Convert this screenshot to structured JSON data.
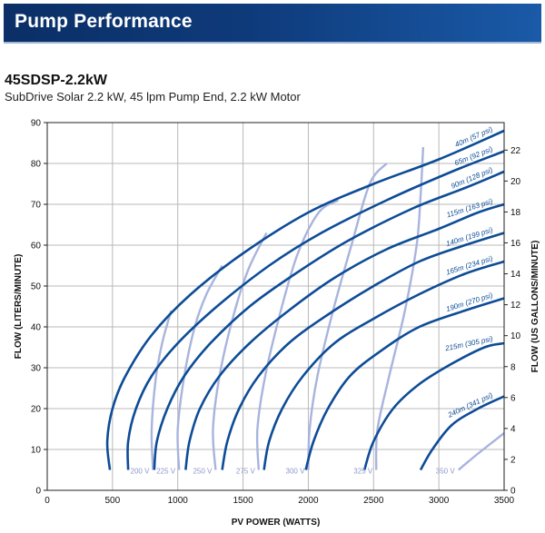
{
  "header": {
    "title": "Pump Performance"
  },
  "model": {
    "name": "45SDSP-2.2kW",
    "description": "SubDrive Solar 2.2 kW, 45 lpm Pump End, 2.2 kW Motor"
  },
  "colors": {
    "banner": "#0e3a7a",
    "head_curve": "#0d4c96",
    "voltage_curve": "#a8b4de",
    "grid": "#b8b8b8"
  },
  "chart_data": {
    "type": "line",
    "xlabel": "PV POWER (WATTS)",
    "ylabel": "FLOW (LITERS/MINUTE)",
    "y2label": "FLOW (US GALLONS/MINUTE)",
    "xlim": [
      0,
      3500
    ],
    "ylim": [
      0,
      90
    ],
    "y2lim": [
      0,
      23.78
    ],
    "x_ticks": [
      0,
      500,
      1000,
      1500,
      2000,
      2500,
      3000,
      3500
    ],
    "y_ticks": [
      0,
      10,
      20,
      30,
      40,
      50,
      60,
      70,
      80,
      90
    ],
    "y2_ticks": [
      0,
      2,
      4,
      6,
      8,
      10,
      12,
      14,
      16,
      18,
      20,
      22
    ],
    "grid": true,
    "head_series": [
      {
        "name": "40m (57 psi)",
        "points": [
          [
            480,
            5
          ],
          [
            460,
            12
          ],
          [
            500,
            20
          ],
          [
            600,
            28
          ],
          [
            800,
            38
          ],
          [
            1100,
            48
          ],
          [
            1500,
            58
          ],
          [
            2000,
            68
          ],
          [
            2500,
            75
          ],
          [
            3000,
            81
          ],
          [
            3500,
            88
          ]
        ]
      },
      {
        "name": "65m (92 psi)",
        "points": [
          [
            620,
            5
          ],
          [
            620,
            12
          ],
          [
            680,
            20
          ],
          [
            800,
            28
          ],
          [
            1000,
            36
          ],
          [
            1300,
            45
          ],
          [
            1700,
            55
          ],
          [
            2100,
            63
          ],
          [
            2600,
            71
          ],
          [
            3100,
            78
          ],
          [
            3500,
            83
          ]
        ]
      },
      {
        "name": "90m (128 psi)",
        "points": [
          [
            820,
            5
          ],
          [
            840,
            12
          ],
          [
            920,
            20
          ],
          [
            1050,
            28
          ],
          [
            1250,
            36
          ],
          [
            1550,
            45
          ],
          [
            1900,
            53
          ],
          [
            2300,
            61
          ],
          [
            2800,
            69
          ],
          [
            3200,
            74
          ],
          [
            3500,
            78
          ]
        ]
      },
      {
        "name": "115m (163 psi)",
        "points": [
          [
            1060,
            5
          ],
          [
            1090,
            12
          ],
          [
            1170,
            20
          ],
          [
            1320,
            28
          ],
          [
            1550,
            36
          ],
          [
            1850,
            44
          ],
          [
            2200,
            52
          ],
          [
            2600,
            59
          ],
          [
            3000,
            64
          ],
          [
            3300,
            68
          ],
          [
            3500,
            70
          ]
        ]
      },
      {
        "name": "140m (199 psi)",
        "points": [
          [
            1340,
            5
          ],
          [
            1380,
            12
          ],
          [
            1470,
            20
          ],
          [
            1620,
            28
          ],
          [
            1850,
            36
          ],
          [
            2150,
            43
          ],
          [
            2500,
            50
          ],
          [
            2850,
            56
          ],
          [
            3200,
            60
          ],
          [
            3500,
            63
          ]
        ]
      },
      {
        "name": "165m (234 psi)",
        "points": [
          [
            1660,
            5
          ],
          [
            1700,
            12
          ],
          [
            1800,
            20
          ],
          [
            1960,
            28
          ],
          [
            2200,
            36
          ],
          [
            2500,
            42
          ],
          [
            2850,
            48
          ],
          [
            3200,
            53
          ],
          [
            3500,
            56
          ]
        ]
      },
      {
        "name": "190m (270 psi)",
        "points": [
          [
            1980,
            5
          ],
          [
            2040,
            12
          ],
          [
            2150,
            20
          ],
          [
            2320,
            28
          ],
          [
            2550,
            34
          ],
          [
            2850,
            40
          ],
          [
            3200,
            44
          ],
          [
            3500,
            47
          ]
        ]
      },
      {
        "name": "215m (305 psi)",
        "points": [
          [
            2430,
            5
          ],
          [
            2500,
            12
          ],
          [
            2650,
            20
          ],
          [
            2850,
            26
          ],
          [
            3100,
            31
          ],
          [
            3350,
            35
          ],
          [
            3500,
            36
          ]
        ]
      },
      {
        "name": "240m (341 psi)",
        "points": [
          [
            2860,
            5
          ],
          [
            2950,
            10
          ],
          [
            3100,
            16
          ],
          [
            3300,
            20
          ],
          [
            3500,
            23
          ]
        ]
      }
    ],
    "voltage_series": [
      {
        "name": "200 V",
        "points": [
          [
            810,
            5
          ],
          [
            800,
            15
          ],
          [
            830,
            27
          ],
          [
            880,
            36
          ],
          [
            950,
            44
          ]
        ]
      },
      {
        "name": "225 V",
        "points": [
          [
            1010,
            5
          ],
          [
            1000,
            15
          ],
          [
            1050,
            28
          ],
          [
            1130,
            40
          ],
          [
            1220,
            48
          ],
          [
            1340,
            55
          ]
        ]
      },
      {
        "name": "250 V",
        "points": [
          [
            1290,
            5
          ],
          [
            1270,
            15
          ],
          [
            1320,
            28
          ],
          [
            1420,
            42
          ],
          [
            1540,
            54
          ],
          [
            1680,
            63
          ]
        ]
      },
      {
        "name": "275 V",
        "points": [
          [
            1620,
            5
          ],
          [
            1610,
            15
          ],
          [
            1670,
            28
          ],
          [
            1790,
            44
          ],
          [
            1920,
            58
          ],
          [
            2080,
            68
          ],
          [
            2230,
            71
          ]
        ]
      },
      {
        "name": "300 V",
        "points": [
          [
            2000,
            5
          ],
          [
            2010,
            15
          ],
          [
            2070,
            28
          ],
          [
            2190,
            44
          ],
          [
            2330,
            60
          ],
          [
            2470,
            75
          ],
          [
            2600,
            80
          ]
        ]
      },
      {
        "name": "325 V",
        "points": [
          [
            2520,
            5
          ],
          [
            2530,
            15
          ],
          [
            2620,
            28
          ],
          [
            2740,
            44
          ],
          [
            2830,
            60
          ],
          [
            2860,
            72
          ],
          [
            2880,
            84
          ]
        ]
      },
      {
        "name": "350 V",
        "points": [
          [
            3150,
            5
          ],
          [
            3300,
            9
          ],
          [
            3500,
            14
          ]
        ]
      }
    ]
  }
}
